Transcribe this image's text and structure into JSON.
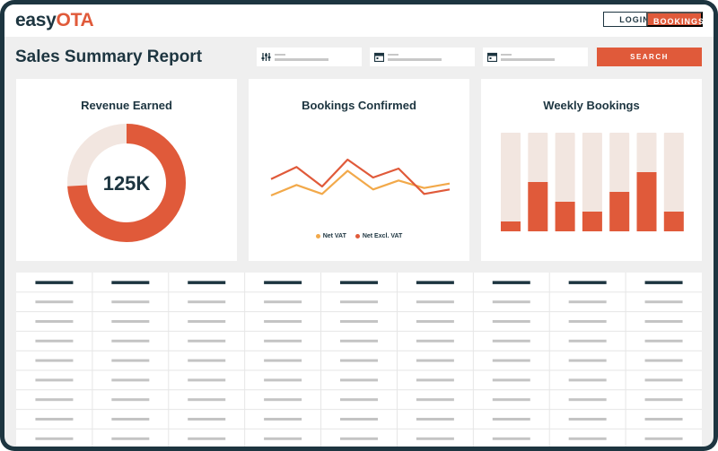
{
  "header": {
    "logo_prefix": "easy",
    "logo_accent": "OTA",
    "login_label": "LOGIN",
    "bookings_label": "BOOKINGS"
  },
  "page": {
    "title": "Sales Summary Report"
  },
  "filters": [
    {
      "icon": "sliders-icon"
    },
    {
      "icon": "calendar-icon"
    },
    {
      "icon": "calendar-icon"
    }
  ],
  "search_label": "SEARCH",
  "colors": {
    "accent": "#e05a3a",
    "dark": "#1d3540",
    "secondary_line": "#f2a94a",
    "donut_track": "#f2e6e0",
    "bar_track": "#f2e6e0"
  },
  "revenue": {
    "title": "Revenue Earned",
    "value": "125K",
    "fraction": 0.74
  },
  "bookings": {
    "title": "Bookings Confirmed",
    "chart_data": {
      "type": "line",
      "x": [
        1,
        2,
        3,
        4,
        5,
        6,
        7,
        8
      ],
      "series": [
        {
          "name": "Net VAT",
          "values": [
            2.4,
            3.8,
            2.6,
            5.7,
            3.2,
            4.4,
            3.4,
            4.0
          ]
        },
        {
          "name": "Net Excl. VAT",
          "values": [
            4.6,
            6.2,
            3.6,
            7.2,
            4.8,
            6.0,
            2.6,
            3.2
          ]
        }
      ],
      "ylim": [
        0,
        9
      ]
    }
  },
  "weekly": {
    "title": "Weekly Bookings",
    "chart_data": {
      "type": "bar",
      "values": [
        10,
        50,
        30,
        20,
        40,
        60,
        20
      ],
      "ylim": [
        0,
        100
      ]
    }
  },
  "table": {
    "columns": 9,
    "rows": 8
  }
}
